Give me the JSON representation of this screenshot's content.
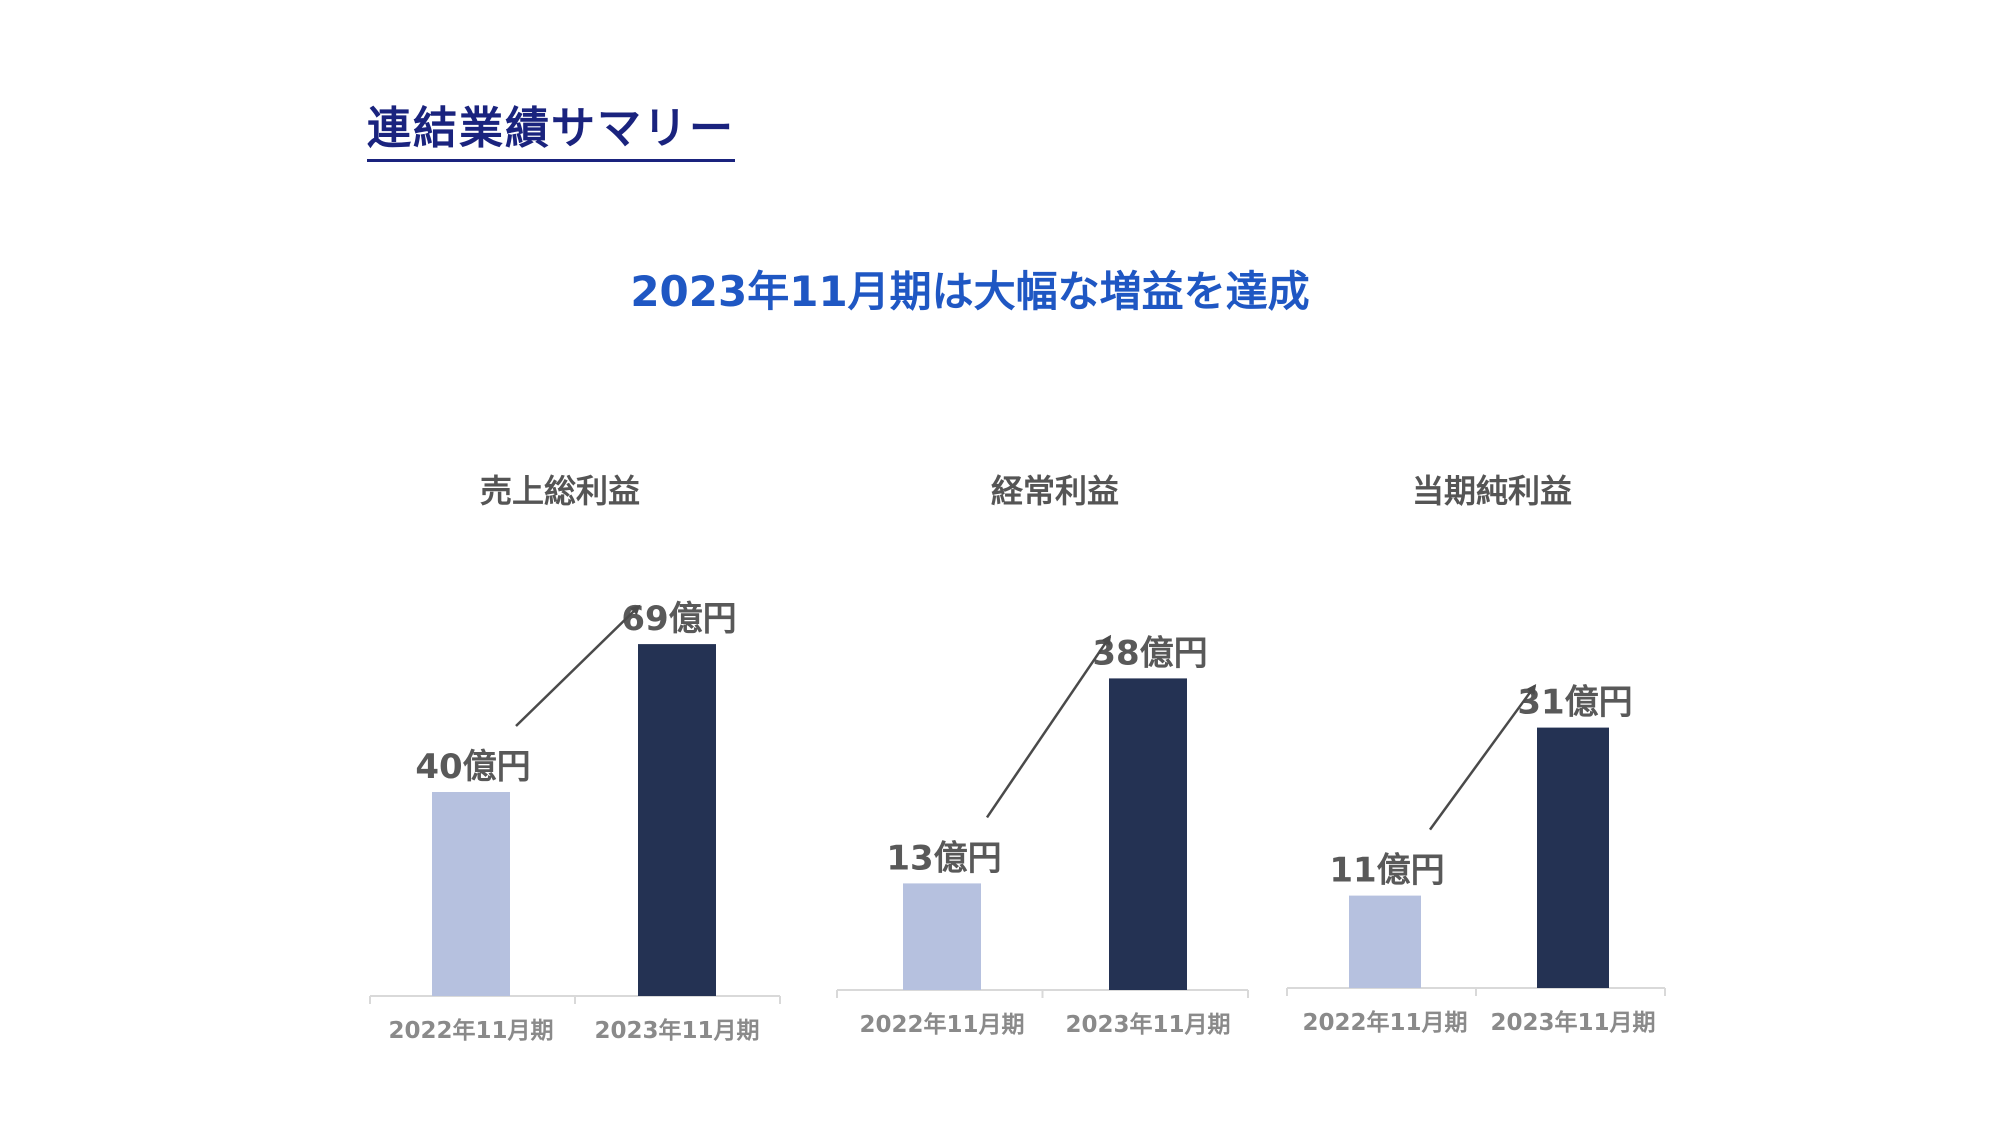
{
  "page": {
    "title": "連結業績サマリー",
    "headline": "2023年11月期は大幅な増益を達成"
  },
  "colors": {
    "prior_year": "#b6c1df",
    "current_year": "#243253",
    "title": "#1a237e",
    "headline": "#1f57c3"
  },
  "chart_data": [
    {
      "type": "bar",
      "title": "売上総利益",
      "categories": [
        "2022年11月期",
        "2023年11月期"
      ],
      "values": [
        40,
        69
      ],
      "data_labels": [
        "40億円",
        "69億円"
      ],
      "unit": "億円",
      "ylim": [
        0,
        80
      ],
      "grid": false,
      "annotation": "arrow from 2022 to 2023"
    },
    {
      "type": "bar",
      "title": "経常利益",
      "categories": [
        "2022年11月期",
        "2023年11月期"
      ],
      "values": [
        13,
        38
      ],
      "data_labels": [
        "13億円",
        "38億円"
      ],
      "unit": "億円",
      "ylim": [
        0,
        45
      ],
      "grid": false,
      "annotation": "arrow from 2022 to 2023"
    },
    {
      "type": "bar",
      "title": "当期純利益",
      "categories": [
        "2022年11月期",
        "2023年11月期"
      ],
      "values": [
        11,
        31
      ],
      "data_labels": [
        "11億円",
        "31億円"
      ],
      "unit": "億円",
      "ylim": [
        0,
        40
      ],
      "grid": false,
      "annotation": "arrow from 2022 to 2023"
    }
  ]
}
